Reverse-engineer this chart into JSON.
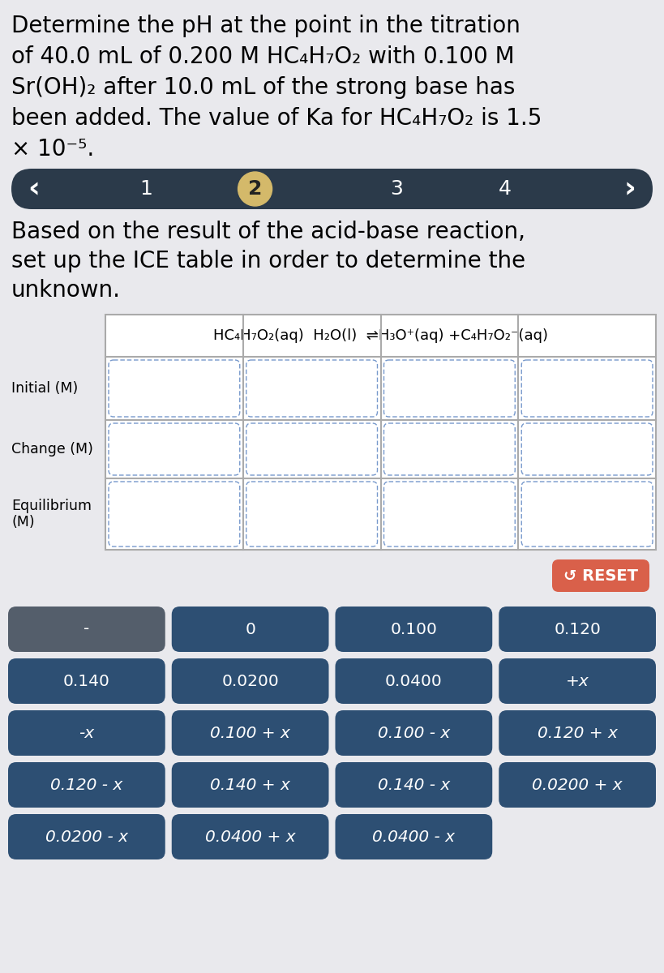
{
  "bg_color": "#e9e9ed",
  "title_line1": "Determine the pH at the point in the titration",
  "title_line2": "of 40.0 mL of 0.200 M HC₄H₇O₂ with 0.100 M",
  "title_line3": "Sr(OH)₂ after 10.0 mL of the strong base has",
  "title_line4": "been added. The value of Ka for HC₄H₇O₂ is 1.5",
  "title_line5": "× 10⁻⁵.",
  "nav_numbers": [
    "1",
    "2",
    "3",
    "4"
  ],
  "nav_active_idx": 1,
  "nav_bg": "#2b3a4a",
  "nav_active_color": "#d4b96a",
  "subtitle_line1": "Based on the result of the acid-base reaction,",
  "subtitle_line2": "set up the ICE table in order to determine the",
  "subtitle_line3": "unknown.",
  "table_header": "HC₄H₇O₂(aq)  H₂O(l)  ⇌H₃O⁺(aq) +C₄H₇O₂⁻(aq)",
  "row_labels": [
    "Initial (M)",
    "Change (M)",
    "Equilibrium\n(M)"
  ],
  "reset_color": "#d9604a",
  "button_color": "#2d4f73",
  "button_dark_color": "#545e6b",
  "buttons": [
    [
      "-",
      "0",
      "0.100",
      "0.120"
    ],
    [
      "0.140",
      "0.0200",
      "0.0400",
      "+x"
    ],
    [
      "-x",
      "0.100 + x",
      "0.100 - x",
      "0.120 + x"
    ],
    [
      "0.120 - x",
      "0.140 + x",
      "0.140 - x",
      "0.0200 + x"
    ],
    [
      "0.0200 - x",
      "0.0400 + x",
      "0.0400 - x",
      ""
    ]
  ]
}
